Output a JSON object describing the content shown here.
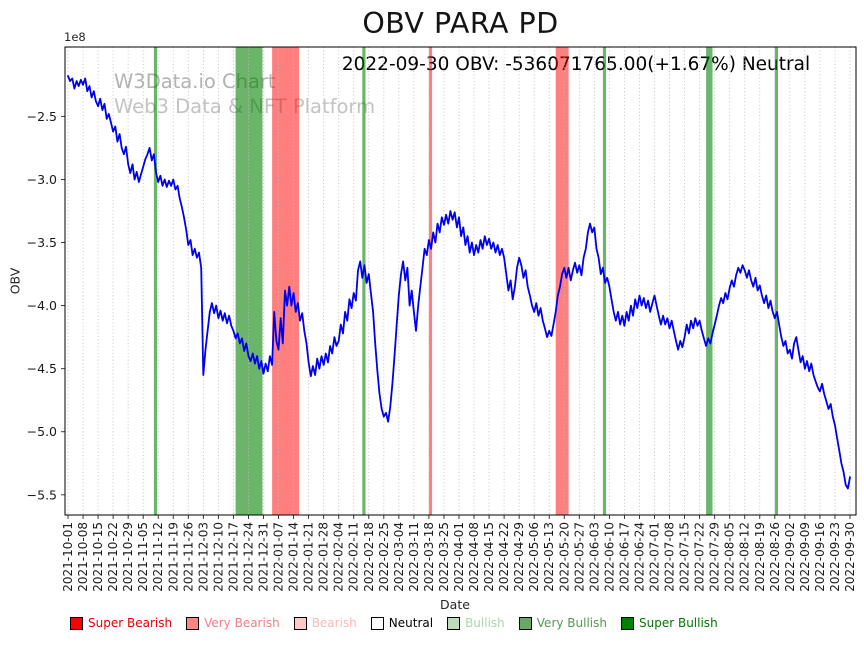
{
  "page": {
    "annotation": "2022-09-30 OBV: -536071765.00(+1.67%) Neutral",
    "watermark_line1": "W3Data.io Chart",
    "watermark_line2": "Web3 Data & NFT Platform"
  },
  "chart_data": {
    "type": "line",
    "title": "OBV PARA PD",
    "xlabel": "Date",
    "ylabel": "OBV",
    "y_offset_label": "1e8",
    "grid": "vertical dotted gridlines at each date tick",
    "legend_position": "below chart, bottom left",
    "latest_reading": {
      "date": "2022-09-30",
      "metric": "OBV",
      "value": "-536071765.00",
      "change": "+1.67%",
      "signal": "Neutral"
    },
    "ylim_1e8": [
      -5.66,
      -1.95
    ],
    "ytick_values_1e8": [
      -2.5,
      -3.0,
      -3.5,
      -4.0,
      -4.5,
      -5.0,
      -5.5
    ],
    "ytick_labels": [
      "−2.5",
      "−3.0",
      "−3.5",
      "−4.0",
      "−4.5",
      "−5.0",
      "−5.5"
    ],
    "x_tick_labels": [
      "2021-10-01",
      "2021-10-08",
      "2021-10-15",
      "2021-10-22",
      "2021-10-29",
      "2021-11-05",
      "2021-11-12",
      "2021-11-19",
      "2021-11-26",
      "2021-12-03",
      "2021-12-10",
      "2021-12-17",
      "2021-12-24",
      "2021-12-31",
      "2022-01-07",
      "2022-01-14",
      "2022-01-21",
      "2022-01-28",
      "2022-02-04",
      "2022-02-11",
      "2022-02-18",
      "2022-02-25",
      "2022-03-04",
      "2022-03-11",
      "2022-03-18",
      "2022-03-25",
      "2022-04-01",
      "2022-04-08",
      "2022-04-15",
      "2022-04-22",
      "2022-04-29",
      "2022-05-06",
      "2022-05-13",
      "2022-05-20",
      "2022-05-27",
      "2022-06-03",
      "2022-06-10",
      "2022-06-17",
      "2022-06-24",
      "2022-07-01",
      "2022-07-08",
      "2022-07-15",
      "2022-07-22",
      "2022-07-29",
      "2022-08-05",
      "2022-08-12",
      "2022-08-19",
      "2022-08-26",
      "2022-09-02",
      "2022-09-09",
      "2022-09-16",
      "2022-09-23",
      "2022-09-30"
    ],
    "series": [
      {
        "name": "OBV",
        "color": "#0000f0",
        "start_date": "2021-10-01",
        "values_1e8": [
          -2.18,
          -2.22,
          -2.2,
          -2.28,
          -2.22,
          -2.26,
          -2.21,
          -2.25,
          -2.2,
          -2.3,
          -2.26,
          -2.35,
          -2.3,
          -2.38,
          -2.42,
          -2.36,
          -2.45,
          -2.4,
          -2.52,
          -2.48,
          -2.55,
          -2.62,
          -2.58,
          -2.7,
          -2.64,
          -2.75,
          -2.8,
          -2.74,
          -2.88,
          -2.95,
          -2.88,
          -3.0,
          -2.94,
          -3.02,
          -2.96,
          -2.9,
          -2.84,
          -2.8,
          -2.75,
          -2.85,
          -2.8,
          -2.95,
          -3.02,
          -2.97,
          -3.05,
          -3.0,
          -3.06,
          -3.01,
          -3.05,
          -3.0,
          -3.08,
          -3.05,
          -3.15,
          -3.22,
          -3.3,
          -3.4,
          -3.52,
          -3.48,
          -3.6,
          -3.55,
          -3.62,
          -3.58,
          -3.7,
          -4.55,
          -4.35,
          -4.2,
          -4.05,
          -3.98,
          -4.06,
          -4.0,
          -4.1,
          -4.04,
          -4.12,
          -4.06,
          -4.14,
          -4.08,
          -4.16,
          -4.2,
          -4.26,
          -4.22,
          -4.3,
          -4.26,
          -4.36,
          -4.3,
          -4.4,
          -4.44,
          -4.38,
          -4.46,
          -4.4,
          -4.5,
          -4.44,
          -4.54,
          -4.46,
          -4.52,
          -4.4,
          -4.47,
          -4.05,
          -4.28,
          -4.35,
          -4.1,
          -4.3,
          -3.88,
          -4.0,
          -3.85,
          -4.0,
          -3.9,
          -4.05,
          -3.98,
          -4.12,
          -4.06,
          -4.2,
          -4.3,
          -4.45,
          -4.56,
          -4.48,
          -4.55,
          -4.42,
          -4.5,
          -4.4,
          -4.47,
          -4.38,
          -4.45,
          -4.32,
          -4.38,
          -4.25,
          -4.32,
          -4.28,
          -4.15,
          -4.22,
          -4.05,
          -4.12,
          -3.95,
          -4.02,
          -3.9,
          -3.96,
          -3.72,
          -3.65,
          -3.78,
          -3.68,
          -3.82,
          -3.75,
          -3.9,
          -4.05,
          -4.3,
          -4.52,
          -4.7,
          -4.82,
          -4.88,
          -4.85,
          -4.92,
          -4.8,
          -4.62,
          -4.4,
          -4.15,
          -3.92,
          -3.75,
          -3.65,
          -3.8,
          -3.7,
          -4.0,
          -3.88,
          -4.05,
          -4.2,
          -4.0,
          -3.85,
          -3.7,
          -3.55,
          -3.6,
          -3.48,
          -3.55,
          -3.42,
          -3.5,
          -3.35,
          -3.42,
          -3.3,
          -3.36,
          -3.28,
          -3.35,
          -3.25,
          -3.32,
          -3.26,
          -3.38,
          -3.3,
          -3.45,
          -3.38,
          -3.52,
          -3.45,
          -3.58,
          -3.5,
          -3.6,
          -3.52,
          -3.58,
          -3.48,
          -3.55,
          -3.45,
          -3.52,
          -3.47,
          -3.55,
          -3.5,
          -3.58,
          -3.52,
          -3.6,
          -3.55,
          -3.62,
          -3.75,
          -3.88,
          -3.8,
          -3.95,
          -3.85,
          -3.7,
          -3.62,
          -3.68,
          -3.78,
          -3.72,
          -3.85,
          -3.92,
          -4.0,
          -4.05,
          -3.98,
          -4.08,
          -4.02,
          -4.12,
          -4.18,
          -4.25,
          -4.2,
          -4.24,
          -4.15,
          -4.05,
          -3.92,
          -3.85,
          -3.75,
          -3.7,
          -3.78,
          -3.7,
          -3.8,
          -3.72,
          -3.66,
          -3.74,
          -3.68,
          -3.76,
          -3.62,
          -3.55,
          -3.42,
          -3.35,
          -3.42,
          -3.38,
          -3.55,
          -3.62,
          -3.75,
          -3.7,
          -3.82,
          -3.78,
          -3.85,
          -3.95,
          -4.05,
          -4.12,
          -4.05,
          -4.15,
          -4.08,
          -4.16,
          -4.05,
          -4.12,
          -4.0,
          -4.08,
          -3.95,
          -4.02,
          -3.92,
          -4.0,
          -3.94,
          -4.02,
          -3.96,
          -4.05,
          -3.98,
          -3.92,
          -4.0,
          -4.08,
          -4.15,
          -4.08,
          -4.15,
          -4.1,
          -4.18,
          -4.12,
          -4.2,
          -4.28,
          -4.35,
          -4.28,
          -4.33,
          -4.25,
          -4.15,
          -4.22,
          -4.12,
          -4.18,
          -4.1,
          -4.16,
          -4.12,
          -4.2,
          -4.26,
          -4.32,
          -4.26,
          -4.3,
          -4.22,
          -4.15,
          -4.08,
          -4.0,
          -3.94,
          -3.98,
          -3.9,
          -3.95,
          -3.86,
          -3.8,
          -3.85,
          -3.76,
          -3.7,
          -3.74,
          -3.68,
          -3.72,
          -3.78,
          -3.72,
          -3.8,
          -3.85,
          -3.78,
          -3.88,
          -3.84,
          -3.92,
          -3.98,
          -3.92,
          -4.02,
          -3.96,
          -4.05,
          -4.1,
          -4.05,
          -4.15,
          -4.25,
          -4.32,
          -4.28,
          -4.38,
          -4.35,
          -4.42,
          -4.3,
          -4.25,
          -4.35,
          -4.45,
          -4.4,
          -4.5,
          -4.44,
          -4.52,
          -4.46,
          -4.55,
          -4.6,
          -4.65,
          -4.68,
          -4.62,
          -4.7,
          -4.76,
          -4.82,
          -4.78,
          -4.88,
          -4.95,
          -5.05,
          -5.15,
          -5.25,
          -5.32,
          -5.42,
          -5.45,
          -5.36
        ]
      }
    ],
    "band_colors": {
      "very_bullish": "rgba(0,128,0,0.58)",
      "very_bearish": "rgba(255,0,0,0.5)"
    },
    "bands": [
      {
        "signal": "very_bullish",
        "start": "2021-11-10",
        "end": "2021-11-11",
        "start_day": 40,
        "end_day": 41.5
      },
      {
        "signal": "very_bullish",
        "start": "2021-12-18",
        "end": "2021-12-29",
        "start_day": 78,
        "end_day": 90.5
      },
      {
        "signal": "very_bearish",
        "start": "2022-01-04",
        "end": "2022-01-16",
        "start_day": 95,
        "end_day": 107.5
      },
      {
        "signal": "very_bullish",
        "start": "2022-02-15",
        "end": "2022-02-16",
        "start_day": 137,
        "end_day": 138.5
      },
      {
        "signal": "very_bearish",
        "start": "2022-03-18",
        "end": "2022-03-19",
        "start_day": 168,
        "end_day": 169.5
      },
      {
        "signal": "very_bearish",
        "start": "2022-05-16",
        "end": "2022-05-22",
        "start_day": 227,
        "end_day": 233
      },
      {
        "signal": "very_bullish",
        "start": "2022-06-08",
        "end": "2022-06-09",
        "start_day": 249,
        "end_day": 250.5
      },
      {
        "signal": "very_bullish",
        "start": "2022-07-25",
        "end": "2022-07-28",
        "start_day": 297,
        "end_day": 300
      },
      {
        "signal": "very_bullish",
        "start": "2022-08-27",
        "end": "2022-08-28",
        "start_day": 329,
        "end_day": 330.5
      }
    ],
    "legend": [
      {
        "label": "Super Bearish",
        "swatch": "#ff0000",
        "text": "#e60000"
      },
      {
        "label": "Very Bearish",
        "swatch": "#ff8585",
        "text": "#f08080"
      },
      {
        "label": "Bearish",
        "swatch": "#ffc9c9",
        "text": "#ffb6b6"
      },
      {
        "label": "Neutral",
        "swatch": "#ffffff",
        "text": "#000000"
      },
      {
        "label": "Bullish",
        "swatch": "#bcdcbc",
        "text": "#aed4ae"
      },
      {
        "label": "Very Bullish",
        "swatch": "#69a869",
        "text": "#4f9b4f"
      },
      {
        "label": "Super Bullish",
        "swatch": "#008000",
        "text": "#007500"
      }
    ]
  }
}
